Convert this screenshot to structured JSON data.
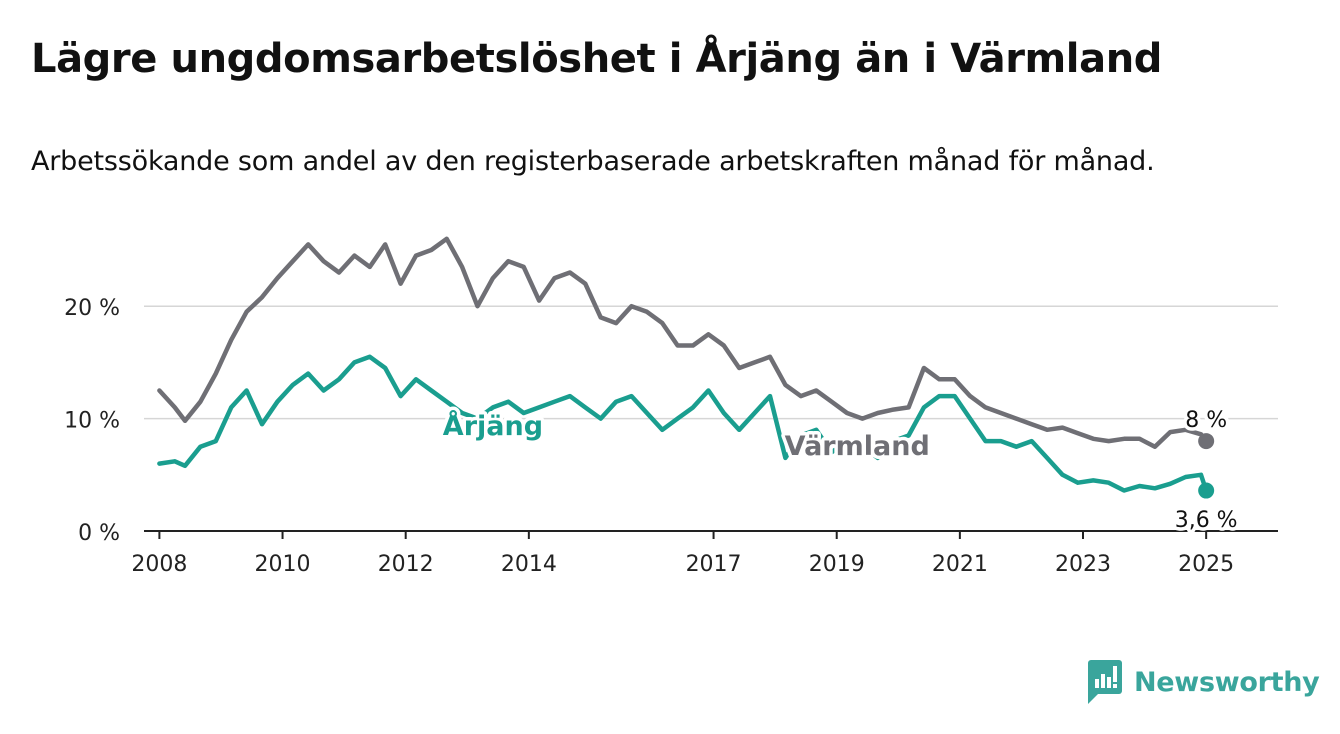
{
  "title": "Lägre ungdomsarbetslöshet i Årjäng än i Värmland",
  "subtitle": "Arbetssökande som andel av den registerbaserade arbetskraften månad för månad.",
  "brand": {
    "name": "Newsworthy",
    "color": "#3aa59c",
    "icon": "bar-chart-badge-icon"
  },
  "chart_data": {
    "type": "line",
    "title": "Lägre ungdomsarbetslöshet i Årjäng än i Värmland",
    "xlabel": "",
    "ylabel": "",
    "ylim": [
      0,
      25
    ],
    "xlim": [
      "2007-10",
      "2026-03"
    ],
    "yticks": [
      0,
      10,
      20
    ],
    "ytick_labels": [
      "0 %",
      "10 %",
      "20 %"
    ],
    "xticks": [
      "2008",
      "2010",
      "2012",
      "2014",
      "2017",
      "2019",
      "2021",
      "2023",
      "2025"
    ],
    "grid": "horizontal",
    "legend": "none",
    "series": [
      {
        "name": "Värmland",
        "color": "#6f6f75",
        "end_label": "8 %",
        "points": [
          [
            "2008-01",
            12.5
          ],
          [
            "2008-04",
            11.0
          ],
          [
            "2008-06",
            9.8
          ],
          [
            "2008-09",
            11.5
          ],
          [
            "2008-12",
            14.0
          ],
          [
            "2009-03",
            17.0
          ],
          [
            "2009-06",
            19.5
          ],
          [
            "2009-09",
            20.8
          ],
          [
            "2009-12",
            22.5
          ],
          [
            "2010-03",
            24.0
          ],
          [
            "2010-06",
            25.5
          ],
          [
            "2010-09",
            24.0
          ],
          [
            "2010-12",
            23.0
          ],
          [
            "2011-03",
            24.5
          ],
          [
            "2011-06",
            23.5
          ],
          [
            "2011-09",
            25.5
          ],
          [
            "2011-12",
            22.0
          ],
          [
            "2012-03",
            24.5
          ],
          [
            "2012-06",
            25.0
          ],
          [
            "2012-09",
            26.0
          ],
          [
            "2012-12",
            23.5
          ],
          [
            "2013-03",
            20.0
          ],
          [
            "2013-06",
            22.5
          ],
          [
            "2013-09",
            24.0
          ],
          [
            "2013-12",
            23.5
          ],
          [
            "2014-03",
            20.5
          ],
          [
            "2014-06",
            22.5
          ],
          [
            "2014-09",
            23.0
          ],
          [
            "2014-12",
            22.0
          ],
          [
            "2015-03",
            19.0
          ],
          [
            "2015-06",
            18.5
          ],
          [
            "2015-09",
            20.0
          ],
          [
            "2015-12",
            19.5
          ],
          [
            "2016-03",
            18.5
          ],
          [
            "2016-06",
            16.5
          ],
          [
            "2016-09",
            16.5
          ],
          [
            "2016-12",
            17.5
          ],
          [
            "2017-03",
            16.5
          ],
          [
            "2017-06",
            14.5
          ],
          [
            "2017-09",
            15.0
          ],
          [
            "2017-12",
            15.5
          ],
          [
            "2018-03",
            13.0
          ],
          [
            "2018-06",
            12.0
          ],
          [
            "2018-09",
            12.5
          ],
          [
            "2018-12",
            11.5
          ],
          [
            "2019-03",
            10.5
          ],
          [
            "2019-06",
            10.0
          ],
          [
            "2019-09",
            10.5
          ],
          [
            "2019-12",
            10.8
          ],
          [
            "2020-03",
            11.0
          ],
          [
            "2020-06",
            14.5
          ],
          [
            "2020-09",
            13.5
          ],
          [
            "2020-12",
            13.5
          ],
          [
            "2021-03",
            12.0
          ],
          [
            "2021-06",
            11.0
          ],
          [
            "2021-09",
            10.5
          ],
          [
            "2021-12",
            10.0
          ],
          [
            "2022-03",
            9.5
          ],
          [
            "2022-06",
            9.0
          ],
          [
            "2022-09",
            9.2
          ],
          [
            "2022-12",
            8.7
          ],
          [
            "2023-03",
            8.2
          ],
          [
            "2023-06",
            8.0
          ],
          [
            "2023-09",
            8.2
          ],
          [
            "2023-12",
            8.2
          ],
          [
            "2024-03",
            7.5
          ],
          [
            "2024-06",
            8.8
          ],
          [
            "2024-09",
            9.0
          ],
          [
            "2024-12",
            8.6
          ],
          [
            "2025-01",
            8.0
          ]
        ]
      },
      {
        "name": "Årjäng",
        "color": "#1a9e8f",
        "end_label": "3,6 %",
        "points": [
          [
            "2008-01",
            6.0
          ],
          [
            "2008-04",
            6.2
          ],
          [
            "2008-06",
            5.8
          ],
          [
            "2008-09",
            7.5
          ],
          [
            "2008-12",
            8.0
          ],
          [
            "2009-03",
            11.0
          ],
          [
            "2009-06",
            12.5
          ],
          [
            "2009-09",
            9.5
          ],
          [
            "2009-12",
            11.5
          ],
          [
            "2010-03",
            13.0
          ],
          [
            "2010-06",
            14.0
          ],
          [
            "2010-09",
            12.5
          ],
          [
            "2010-12",
            13.5
          ],
          [
            "2011-03",
            15.0
          ],
          [
            "2011-06",
            15.5
          ],
          [
            "2011-09",
            14.5
          ],
          [
            "2011-12",
            12.0
          ],
          [
            "2012-03",
            13.5
          ],
          [
            "2012-06",
            12.5
          ],
          [
            "2012-09",
            11.5
          ],
          [
            "2012-12",
            10.5
          ],
          [
            "2013-03",
            10.0
          ],
          [
            "2013-06",
            11.0
          ],
          [
            "2013-09",
            11.5
          ],
          [
            "2013-12",
            10.5
          ],
          [
            "2014-03",
            11.0
          ],
          [
            "2014-06",
            11.5
          ],
          [
            "2014-09",
            12.0
          ],
          [
            "2014-12",
            11.0
          ],
          [
            "2015-03",
            10.0
          ],
          [
            "2015-06",
            11.5
          ],
          [
            "2015-09",
            12.0
          ],
          [
            "2015-12",
            10.5
          ],
          [
            "2016-03",
            9.0
          ],
          [
            "2016-06",
            10.0
          ],
          [
            "2016-09",
            11.0
          ],
          [
            "2016-12",
            12.5
          ],
          [
            "2017-03",
            10.5
          ],
          [
            "2017-06",
            9.0
          ],
          [
            "2017-09",
            10.5
          ],
          [
            "2017-12",
            12.0
          ],
          [
            "2018-03",
            6.5
          ],
          [
            "2018-06",
            8.5
          ],
          [
            "2018-09",
            9.0
          ],
          [
            "2018-12",
            7.0
          ],
          [
            "2019-03",
            8.0
          ],
          [
            "2019-06",
            7.5
          ],
          [
            "2019-09",
            6.5
          ],
          [
            "2019-12",
            8.0
          ],
          [
            "2020-03",
            8.5
          ],
          [
            "2020-06",
            11.0
          ],
          [
            "2020-09",
            12.0
          ],
          [
            "2020-12",
            12.0
          ],
          [
            "2021-03",
            10.0
          ],
          [
            "2021-06",
            8.0
          ],
          [
            "2021-09",
            8.0
          ],
          [
            "2021-12",
            7.5
          ],
          [
            "2022-03",
            8.0
          ],
          [
            "2022-06",
            6.5
          ],
          [
            "2022-09",
            5.0
          ],
          [
            "2022-12",
            4.3
          ],
          [
            "2023-03",
            4.5
          ],
          [
            "2023-06",
            4.3
          ],
          [
            "2023-09",
            3.6
          ],
          [
            "2023-12",
            4.0
          ],
          [
            "2024-03",
            3.8
          ],
          [
            "2024-06",
            4.2
          ],
          [
            "2024-09",
            4.8
          ],
          [
            "2024-12",
            5.0
          ],
          [
            "2025-01",
            3.6
          ]
        ]
      }
    ]
  }
}
